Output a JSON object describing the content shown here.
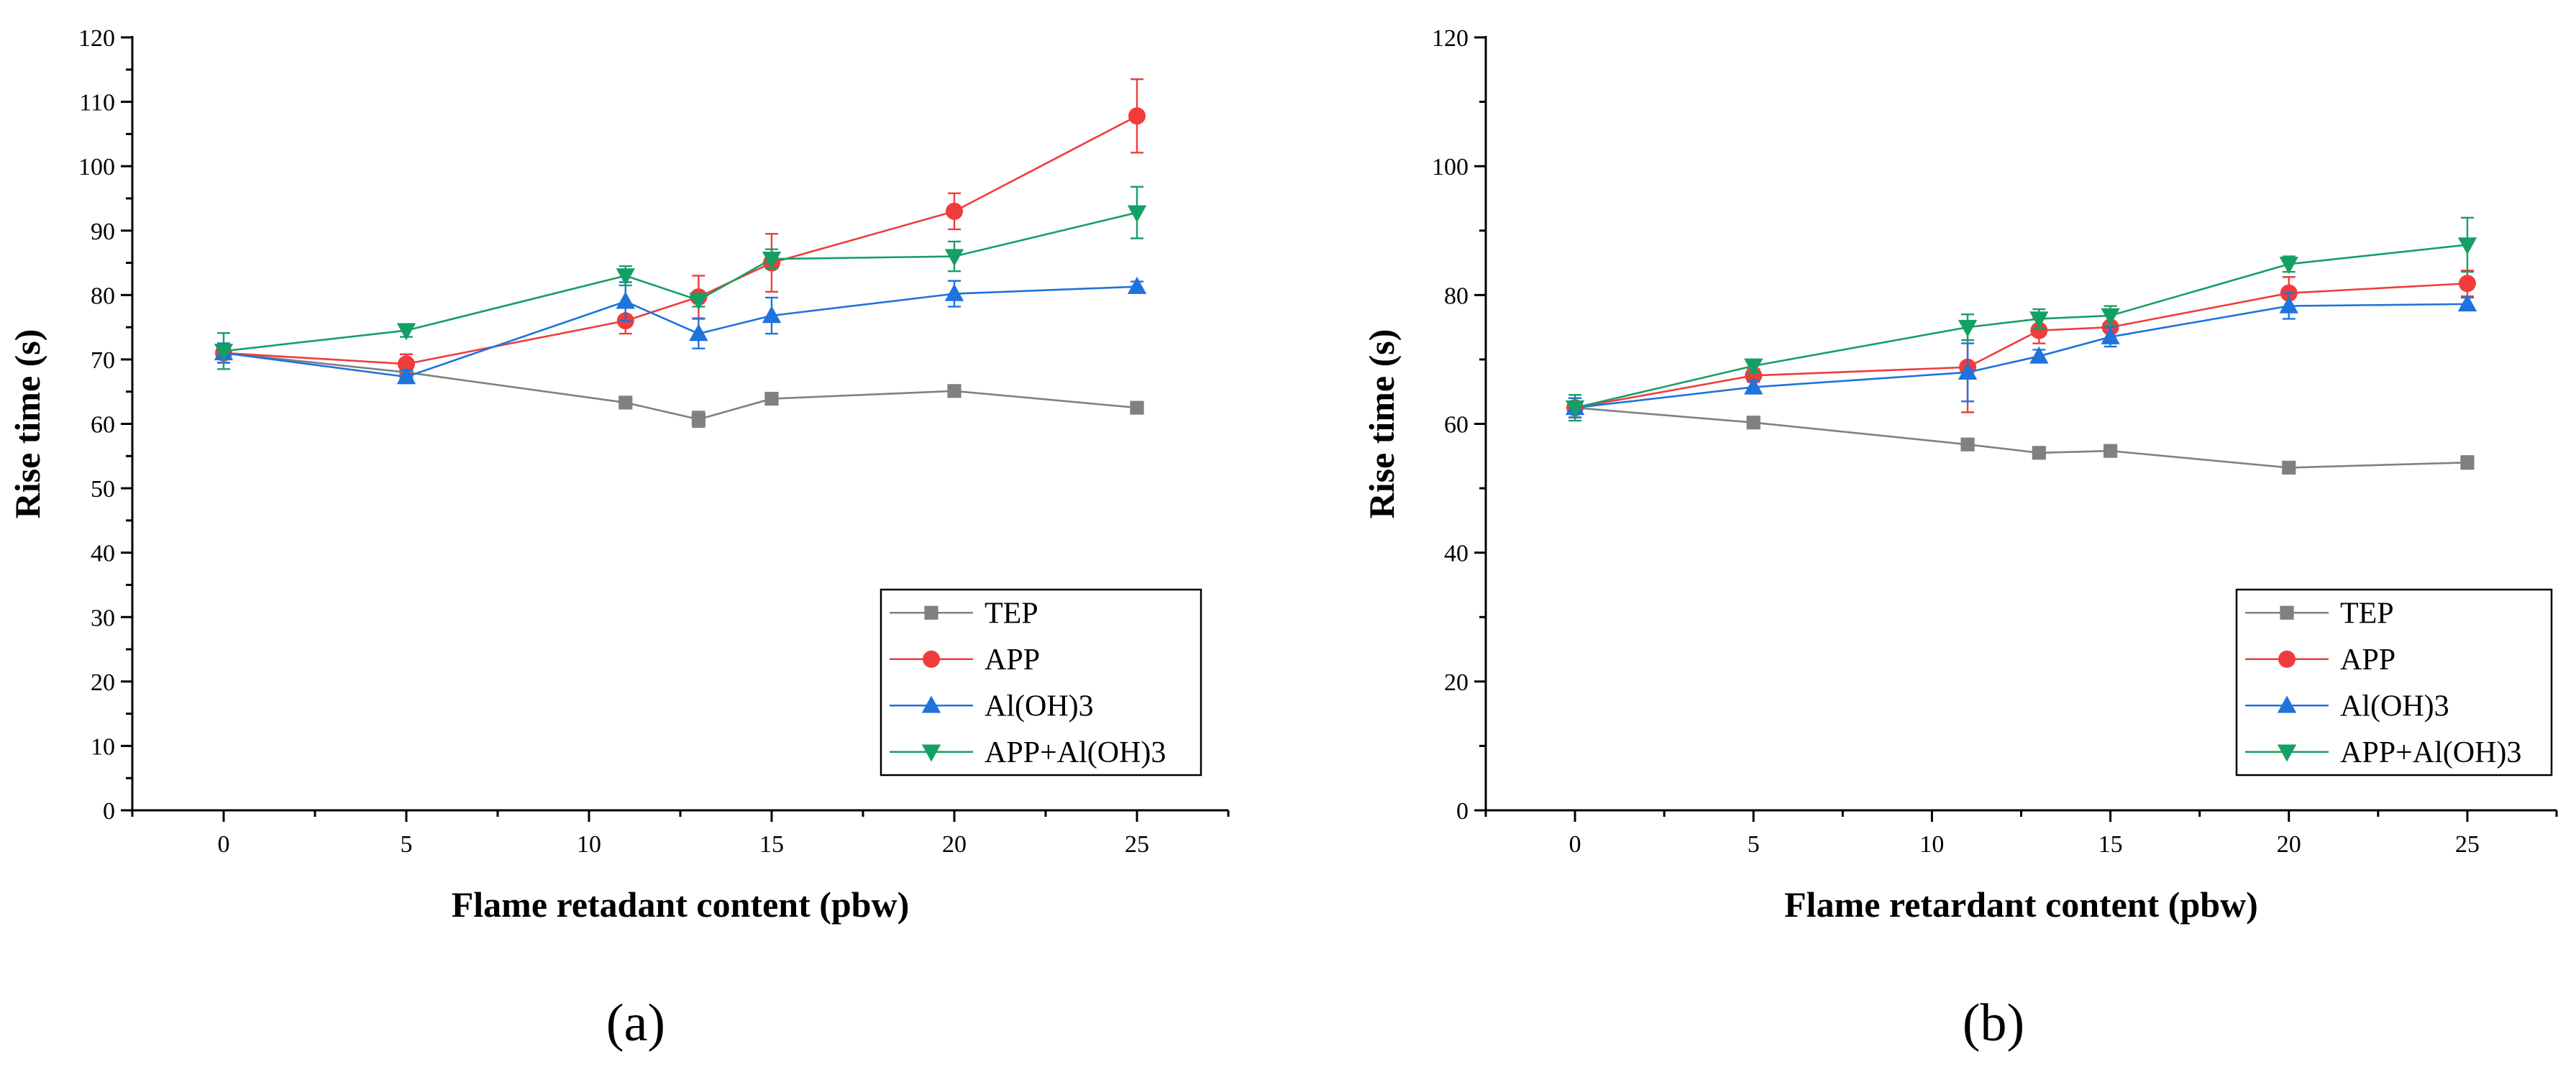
{
  "colors": {
    "TEP": "#808080",
    "APP": "#f03c3c",
    "Al(OH)3": "#1e73dc",
    "APP+Al(OH)3": "#14a064"
  },
  "chart_data": [
    {
      "type": "line",
      "panel_label": "(a)",
      "xlabel": "Flame retadant content (pbw)",
      "ylabel": "Rise time (s)",
      "xlim": [
        -2.5,
        27.5
      ],
      "ylim": [
        0,
        120
      ],
      "xticks": [
        0,
        5,
        10,
        15,
        20,
        25
      ],
      "yticks": [
        0,
        10,
        20,
        30,
        40,
        50,
        60,
        70,
        80,
        90,
        100,
        110,
        120
      ],
      "x": [
        0,
        5,
        11,
        13,
        15,
        20,
        25
      ],
      "legend_position": "bottom-right",
      "series": [
        {
          "name": "TEP",
          "marker": "square",
          "values": [
            71.0,
            68.0,
            63.3,
            60.7,
            63.9,
            65.1,
            62.5
          ],
          "errors": [
            1.5,
            0.8,
            0.8,
            1.2,
            0.8,
            0.8,
            0.8
          ]
        },
        {
          "name": "APP",
          "marker": "circle",
          "values": [
            71.0,
            69.3,
            76.0,
            79.7,
            85.0,
            93.0,
            107.8
          ],
          "errors": [
            1.5,
            1.5,
            2.0,
            3.3,
            4.5,
            2.8,
            5.7
          ]
        },
        {
          "name": "Al(OH)3",
          "marker": "triangle-up",
          "values": [
            71.0,
            67.3,
            79.0,
            74.0,
            76.8,
            80.2,
            81.3
          ],
          "errors": [
            1.5,
            1.0,
            3.0,
            2.3,
            2.8,
            2.0,
            0.8
          ]
        },
        {
          "name": "APP+Al(OH)3",
          "marker": "triangle-down",
          "values": [
            71.3,
            74.5,
            83.0,
            79.2,
            85.6,
            86.0,
            92.8
          ],
          "errors": [
            2.8,
            1.0,
            1.5,
            1.0,
            1.5,
            2.3,
            4.0
          ]
        }
      ]
    },
    {
      "type": "line",
      "panel_label": "(b)",
      "xlabel": "Flame retardant content (pbw)",
      "ylabel": "Rise time (s)",
      "xlim": [
        -2.5,
        27.5
      ],
      "ylim": [
        0,
        120
      ],
      "xticks": [
        0,
        5,
        10,
        15,
        20,
        25
      ],
      "yticks": [
        0,
        20,
        40,
        60,
        80,
        100,
        120
      ],
      "x": [
        0,
        5,
        11,
        13,
        15,
        20,
        25
      ],
      "legend_position": "bottom-right",
      "series": [
        {
          "name": "TEP",
          "marker": "square",
          "values": [
            62.5,
            60.2,
            56.8,
            55.5,
            55.8,
            53.2,
            54.0
          ],
          "errors": [
            1.5,
            0.8,
            0.8,
            0.8,
            0.8,
            0.8,
            1.0
          ]
        },
        {
          "name": "APP",
          "marker": "circle",
          "values": [
            62.5,
            67.5,
            68.8,
            74.5,
            75.0,
            80.3,
            81.8
          ],
          "errors": [
            1.5,
            1.0,
            7.0,
            2.0,
            2.5,
            2.5,
            2.0
          ]
        },
        {
          "name": "Al(OH)3",
          "marker": "triangle-up",
          "values": [
            62.5,
            65.7,
            68.0,
            70.5,
            73.5,
            78.3,
            78.6
          ],
          "errors": [
            1.5,
            1.0,
            4.5,
            1.0,
            1.5,
            2.0,
            1.0
          ]
        },
        {
          "name": "APP+Al(OH)3",
          "marker": "triangle-down",
          "values": [
            62.5,
            69.0,
            75.0,
            76.3,
            76.8,
            84.8,
            87.8
          ],
          "errors": [
            2.0,
            1.0,
            2.0,
            1.5,
            1.5,
            1.2,
            4.2
          ]
        }
      ]
    }
  ]
}
